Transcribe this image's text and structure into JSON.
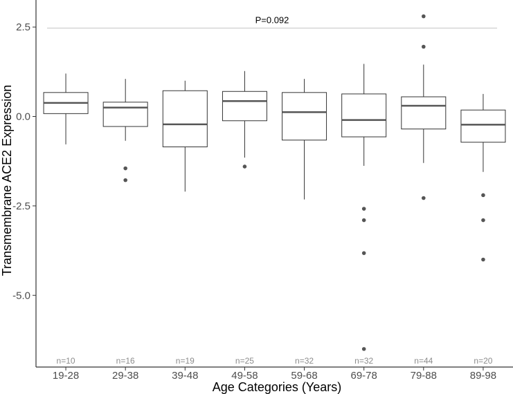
{
  "chart_data": {
    "type": "boxplot",
    "xlabel": "Age Categories (Years)",
    "ylabel": "Transmembrane ACE2 Expression",
    "ylim": [
      -7.0,
      3.2
    ],
    "yticks": [
      2.5,
      0.0,
      -2.5,
      -5.0
    ],
    "ytick_labels": [
      "2.5",
      "0.0",
      "-2.5",
      "-5.0"
    ],
    "grid": false,
    "colors": {
      "box_stroke": "#333333",
      "median": "#555555",
      "outlier": "#555555",
      "reference_line": "#c8c8c8",
      "axis": "#333333"
    },
    "annotation": {
      "text": "P=0.092",
      "y": 2.47
    },
    "categories": [
      "19-28",
      "29-38",
      "39-48",
      "49-58",
      "59-68",
      "69-78",
      "79-88",
      "89-98"
    ],
    "n_labels": [
      "n=10",
      "n=16",
      "n=19",
      "n=25",
      "n=32",
      "n=32",
      "n=44",
      "n=20"
    ],
    "boxes": [
      {
        "whisker_low": -0.78,
        "q1": 0.08,
        "median": 0.38,
        "q3": 0.67,
        "whisker_high": 1.2,
        "outliers": []
      },
      {
        "whisker_low": -0.68,
        "q1": -0.28,
        "median": 0.25,
        "q3": 0.4,
        "whisker_high": 1.05,
        "outliers": [
          -1.45,
          -1.78
        ]
      },
      {
        "whisker_low": -2.1,
        "q1": -0.85,
        "median": -0.22,
        "q3": 0.72,
        "whisker_high": 1.0,
        "outliers": []
      },
      {
        "whisker_low": -1.15,
        "q1": -0.12,
        "median": 0.43,
        "q3": 0.7,
        "whisker_high": 1.27,
        "outliers": [
          -1.4
        ]
      },
      {
        "whisker_low": -2.32,
        "q1": -0.66,
        "median": 0.12,
        "q3": 0.67,
        "whisker_high": 1.05,
        "outliers": []
      },
      {
        "whisker_low": -1.38,
        "q1": -0.57,
        "median": -0.1,
        "q3": 0.63,
        "whisker_high": 1.47,
        "outliers": [
          -2.58,
          -2.9,
          -3.82,
          -6.5
        ]
      },
      {
        "whisker_low": -1.3,
        "q1": -0.35,
        "median": 0.3,
        "q3": 0.55,
        "whisker_high": 1.45,
        "outliers": [
          -2.28,
          1.95,
          2.8
        ]
      },
      {
        "whisker_low": -1.55,
        "q1": -0.72,
        "median": -0.23,
        "q3": 0.18,
        "whisker_high": 0.63,
        "outliers": [
          -2.2,
          -2.9,
          -4.0
        ]
      }
    ]
  }
}
